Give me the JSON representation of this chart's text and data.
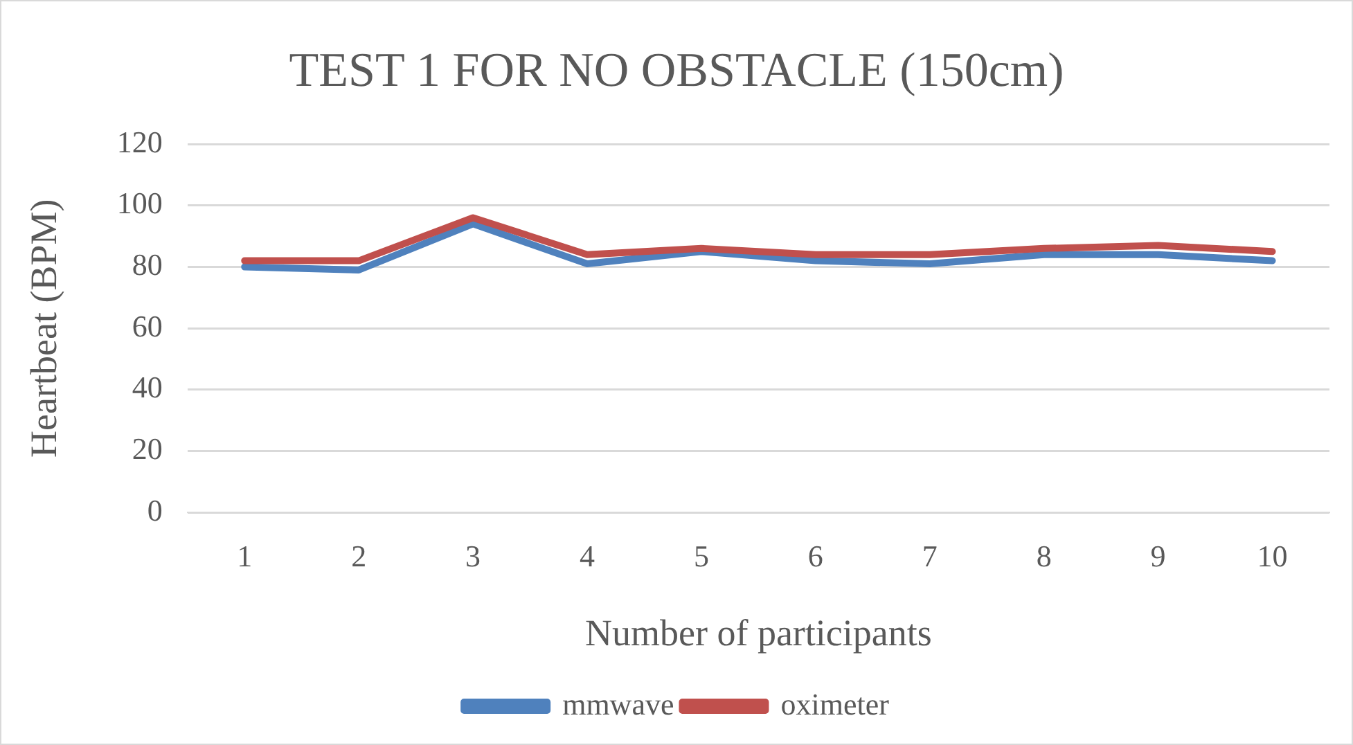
{
  "chart_data": {
    "type": "line",
    "title": "TEST 1 FOR NO OBSTACLE (150cm)",
    "xlabel": "Number of participants",
    "ylabel": "Heartbeat (BPM)",
    "categories": [
      "1",
      "2",
      "3",
      "4",
      "5",
      "6",
      "7",
      "8",
      "9",
      "10"
    ],
    "series": [
      {
        "name": "mmwave",
        "color": "#4f81bd",
        "values": [
          80,
          79,
          94,
          81,
          85,
          82,
          81,
          84,
          84,
          82
        ]
      },
      {
        "name": "oximeter",
        "color": "#c0504d",
        "values": [
          82,
          82,
          96,
          84,
          86,
          84,
          84,
          86,
          87,
          85
        ]
      }
    ],
    "ylim": [
      0,
      120
    ],
    "yticks": [
      0,
      20,
      40,
      60,
      80,
      100,
      120
    ],
    "grid": "y",
    "legend": "bottom",
    "marker": "none",
    "line_style": "solid"
  }
}
